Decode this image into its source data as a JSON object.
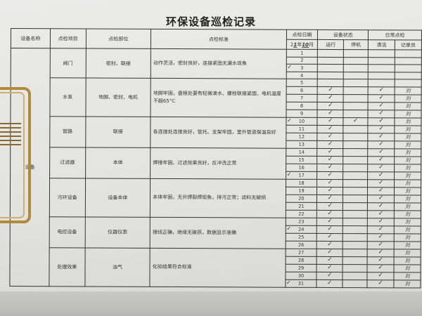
{
  "title": "环保设备巡检记录",
  "headers": {
    "name": "设备名称",
    "item": "点检项目",
    "part": "点检部位",
    "standard": "点检标准",
    "date": "点检日期",
    "year_prefix": "2",
    "year_hand": "1",
    "year_unit": "年",
    "month_hand": "10",
    "month_unit": "月",
    "status": "设备状态",
    "running": "运行",
    "stopped": "停机",
    "daily": "日常点检",
    "clean": "清洁",
    "recorder": "记录员"
  },
  "equipment_name": "设备",
  "rows": [
    {
      "item": "阀门",
      "part": "密封、联接",
      "standard": "动作灵活，密封良好，连接紧固无漏水现象",
      "days": 4
    },
    {
      "item": "水泵",
      "part": "地脚、密封、电机",
      "standard": "地脚牢固，盘根处要有轻微滴水、螺栓联接紧固、电机温度不超65°C",
      "days": 5
    },
    {
      "item": "管路",
      "part": "联接",
      "standard": "各连接处连接良好，管托、支架牢固，室外管道保温良好",
      "days": 4
    },
    {
      "item": "过滤器",
      "part": "本体",
      "standard": "焊接牢固、过滤效果良好，反冲洗正常",
      "days": 4
    },
    {
      "item": "污环设备",
      "part": "设备本体",
      "standard": "本体牢固，无开焊裂焊现象，排污正常；滤料无破损",
      "days": 5
    },
    {
      "item": "电控设备",
      "part": "仪器仪表",
      "standard": "接线正确，绝缘无破损，数据显示准确",
      "days": 4
    },
    {
      "item": "处理效果",
      "part": "油气",
      "standard": "化验结果符合标准",
      "days": 5
    }
  ],
  "check_mark": "✓",
  "signature_mark": "刘",
  "days": {
    "numbers": [
      1,
      2,
      3,
      4,
      5,
      6,
      7,
      8,
      9,
      10,
      11,
      12,
      13,
      14,
      15,
      16,
      17,
      18,
      19,
      20,
      21,
      22,
      23,
      24,
      25,
      26,
      27,
      28,
      29,
      30,
      31
    ],
    "date_ticks": [
      3,
      10,
      17,
      24,
      31
    ],
    "running": [
      6,
      7,
      8,
      9,
      10,
      11,
      12,
      13,
      14,
      15,
      16,
      17,
      18,
      19,
      20,
      21,
      22,
      23,
      24,
      25,
      26,
      27,
      28,
      29,
      30,
      31
    ],
    "stopped": [
      10
    ],
    "clean": [
      6,
      7,
      8,
      9,
      10,
      11,
      12,
      13,
      14,
      15,
      16,
      17,
      18,
      19,
      20,
      21,
      22,
      23,
      24,
      25,
      26,
      27,
      28,
      29,
      30,
      31
    ],
    "recorder_signed": [
      6,
      7,
      8,
      9,
      10,
      11,
      12,
      13,
      14,
      15,
      16,
      17,
      18,
      19,
      20,
      21,
      22,
      23,
      24,
      25,
      26,
      27,
      28,
      29,
      30,
      31
    ]
  }
}
